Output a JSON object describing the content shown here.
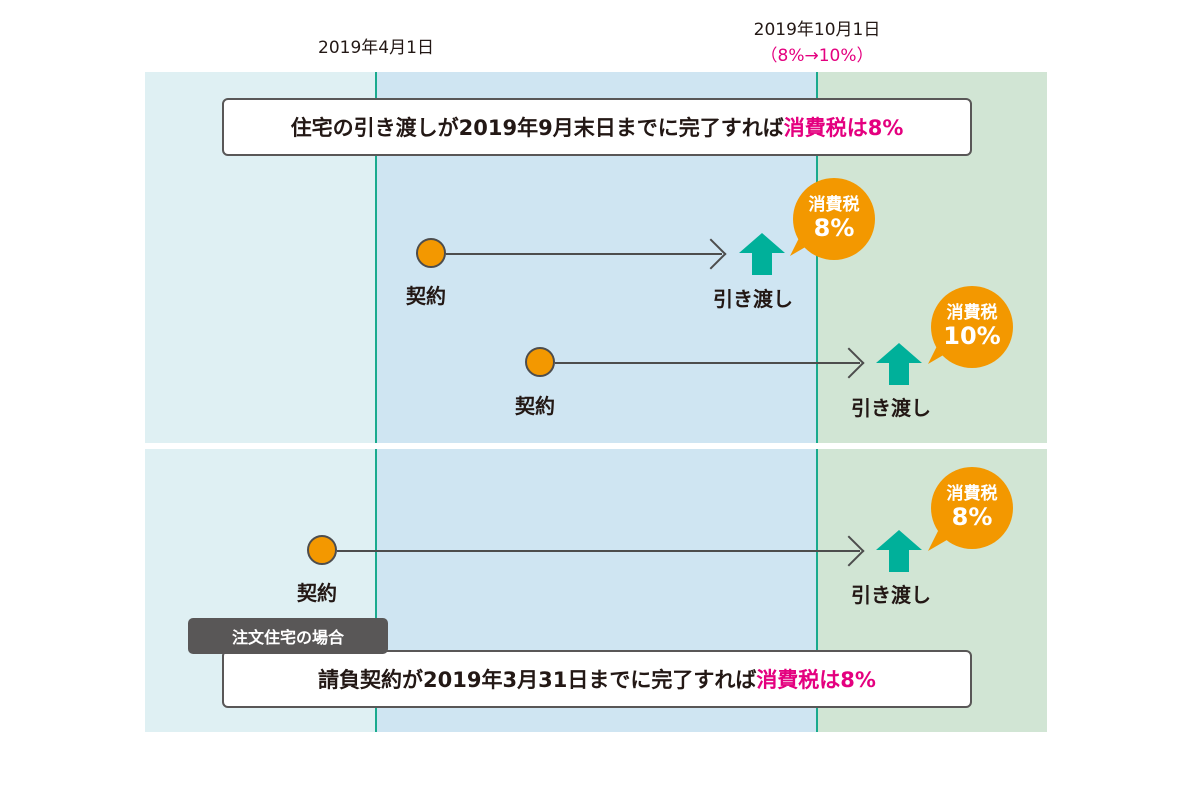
{
  "dates": {
    "april": "2019年4月1日",
    "october": "2019年10月1日",
    "october_note": "（8%→10%）"
  },
  "top_box": {
    "text": "住宅の引き渡しが2019年9月末日までに完了すれば",
    "highlight": "消費税は8%"
  },
  "rows": [
    {
      "contract": "契約",
      "delivery": "引き渡し",
      "bubble_title": "消費税",
      "bubble_rate": "8%"
    },
    {
      "contract": "契約",
      "delivery": "引き渡し",
      "bubble_title": "消費税",
      "bubble_rate": "10%"
    },
    {
      "contract": "契約",
      "delivery": "引き渡し",
      "bubble_title": "消費税",
      "bubble_rate": "8%"
    }
  ],
  "bottom_tag": "注文住宅の場合",
  "bottom_box": {
    "text": "請負契約が2019年3月31日までに完了すれば",
    "highlight": "消費税は8%"
  },
  "colors": {
    "accent": "#e4007f",
    "orange": "#f39800",
    "teal": "#00b09a"
  }
}
